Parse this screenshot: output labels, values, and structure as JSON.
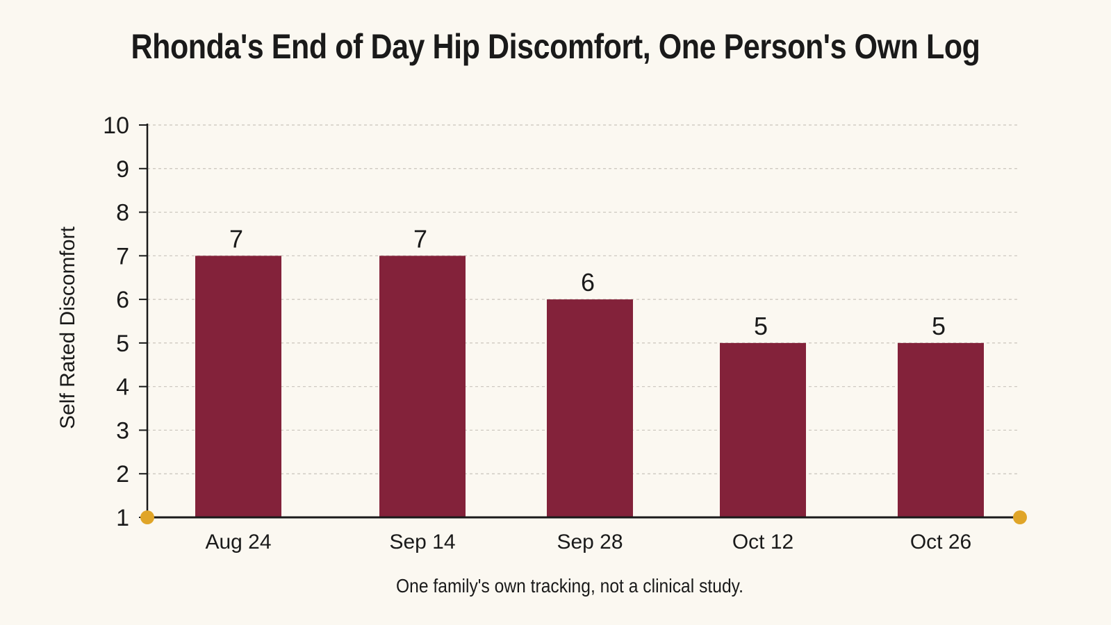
{
  "chart_data": {
    "type": "bar",
    "title": "Rhonda's End of Day Hip Discomfort, One Person's Own Log",
    "xlabel": "",
    "ylabel": "Self Rated Discomfort",
    "categories": [
      "Aug 24",
      "Sep 14",
      "Sep 28",
      "Oct 12",
      "Oct 26"
    ],
    "values": [
      7,
      7,
      6,
      5,
      5
    ],
    "ylim": [
      1,
      10
    ],
    "yticks": [
      1,
      2,
      3,
      4,
      5,
      6,
      7,
      8,
      9,
      10
    ],
    "grid": true,
    "note": "One family's own tracking, not a clinical study.",
    "colors": {
      "bar": "#83223a",
      "axis": "#1a1a1a",
      "grid": "#c9c4bb",
      "marker": "#e0a528",
      "background": "#fbf8f1"
    }
  }
}
